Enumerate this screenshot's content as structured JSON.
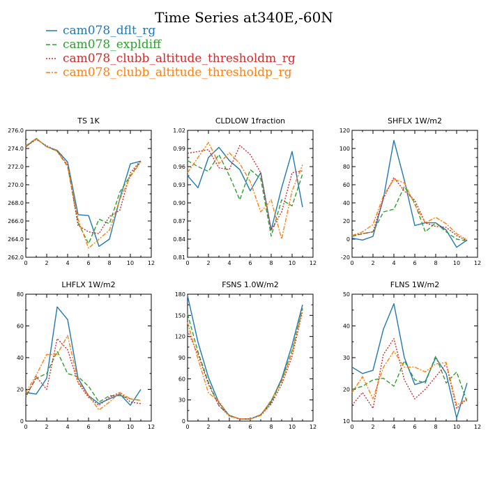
{
  "figure": {
    "title": "Time Series at340E,-60N",
    "legend": [
      {
        "name": "cam078_dflt_rg",
        "color": "#1f77b4",
        "dash": "solid"
      },
      {
        "name": "cam078_expldiff",
        "color": "#2ca02c",
        "dash": "dashed"
      },
      {
        "name": "cam078_clubb_altitude_thresholdm_rg",
        "color": "#d62728",
        "dash": "dotted"
      },
      {
        "name": "cam078_clubb_altitude_thresholdp_rg",
        "color": "#ff7f0e",
        "dash": "dashdot"
      }
    ]
  },
  "chart_data": [
    {
      "type": "line",
      "title": "TS   1K",
      "x": [
        0,
        1,
        2,
        3,
        4,
        5,
        6,
        7,
        8,
        9,
        10,
        11
      ],
      "xlim": [
        0,
        12
      ],
      "xticks": [
        0,
        2,
        4,
        6,
        8,
        10,
        12
      ],
      "ylim": [
        262.0,
        276.0
      ],
      "yticks": [
        262.0,
        264.0,
        266.0,
        268.0,
        270.0,
        272.0,
        274.0,
        276.0
      ],
      "ytick_labels": [
        "262.0",
        "264.0",
        "266.0",
        "268.0",
        "270.0",
        "272.0",
        "274.0",
        "276.0"
      ],
      "series": [
        {
          "name": "cam078_dflt_rg",
          "values": [
            274.2,
            275.1,
            274.2,
            273.8,
            272.5,
            266.7,
            266.6,
            263.2,
            264.0,
            268.5,
            272.3,
            272.6
          ]
        },
        {
          "name": "cam078_expldiff",
          "values": [
            274.3,
            275.1,
            274.2,
            273.7,
            272.0,
            265.8,
            263.5,
            266.2,
            265.7,
            269.2,
            271.0,
            272.6
          ]
        },
        {
          "name": "cam078_clubb_altitude_thresholdm_rg",
          "values": [
            274.2,
            275.0,
            274.3,
            273.7,
            272.2,
            265.5,
            264.8,
            264.6,
            266.5,
            267.2,
            271.3,
            272.7
          ]
        },
        {
          "name": "cam078_clubb_altitude_thresholdp_rg",
          "values": [
            274.3,
            275.1,
            274.2,
            273.7,
            272.1,
            266.2,
            263.0,
            264.0,
            265.0,
            268.4,
            270.9,
            272.5
          ]
        }
      ]
    },
    {
      "type": "line",
      "title": "CLDLOW   1fraction",
      "x": [
        0,
        1,
        2,
        3,
        4,
        5,
        6,
        7,
        8,
        9,
        10,
        11
      ],
      "xlim": [
        0,
        12
      ],
      "xticks": [
        0,
        2,
        4,
        6,
        8,
        10,
        12
      ],
      "ylim": [
        0.81,
        1.02
      ],
      "yticks": [
        0.81,
        0.84,
        0.87,
        0.9,
        0.93,
        0.96,
        0.99,
        1.02
      ],
      "ytick_labels": [
        "0.81",
        "0.84",
        "0.87",
        "0.90",
        "0.93",
        "0.96",
        "0.99",
        "1.02"
      ],
      "series": [
        {
          "name": "cam078_dflt_rg",
          "values": [
            0.945,
            0.925,
            0.975,
            0.992,
            0.97,
            0.955,
            0.92,
            0.95,
            0.855,
            0.925,
            0.985,
            0.893
          ]
        },
        {
          "name": "cam078_expldiff",
          "values": [
            0.97,
            0.96,
            0.952,
            0.98,
            0.945,
            0.905,
            0.955,
            0.94,
            0.845,
            0.905,
            0.895,
            0.948
          ]
        },
        {
          "name": "cam078_clubb_altitude_thresholdm_rg",
          "values": [
            0.982,
            0.985,
            0.988,
            0.958,
            0.955,
            0.995,
            0.98,
            0.95,
            0.855,
            0.885,
            0.95,
            0.953
          ]
        },
        {
          "name": "cam078_clubb_altitude_thresholdp_rg",
          "values": [
            0.95,
            0.975,
            1.0,
            0.965,
            0.983,
            0.965,
            0.935,
            0.885,
            0.905,
            0.84,
            0.92,
            0.963
          ]
        }
      ]
    },
    {
      "type": "line",
      "title": "SHFLX   1W/m2",
      "x": [
        0,
        1,
        2,
        3,
        4,
        5,
        6,
        7,
        8,
        9,
        10,
        11
      ],
      "xlim": [
        0,
        12
      ],
      "xticks": [
        0,
        2,
        4,
        6,
        8,
        10,
        12
      ],
      "ylim": [
        -20,
        120
      ],
      "yticks": [
        -20,
        0,
        20,
        40,
        60,
        80,
        100,
        120
      ],
      "ytick_labels": [
        "-20",
        "0",
        "20",
        "40",
        "60",
        "80",
        "100",
        "120"
      ],
      "series": [
        {
          "name": "cam078_dflt_rg",
          "values": [
            1,
            -1,
            3,
            45,
            109,
            65,
            15,
            18,
            18,
            10,
            -9,
            -1
          ]
        },
        {
          "name": "cam078_expldiff",
          "values": [
            3,
            6,
            8,
            30,
            33,
            58,
            40,
            8,
            18,
            8,
            0,
            -2
          ]
        },
        {
          "name": "cam078_clubb_altitude_thresholdm_rg",
          "values": [
            4,
            6,
            8,
            45,
            68,
            53,
            43,
            18,
            14,
            13,
            4,
            -2
          ]
        },
        {
          "name": "cam078_clubb_altitude_thresholdp_rg",
          "values": [
            4,
            8,
            16,
            48,
            66,
            62,
            38,
            18,
            24,
            17,
            6,
            -1
          ]
        }
      ]
    },
    {
      "type": "line",
      "title": "LHFLX   1W/m2",
      "x": [
        0,
        1,
        2,
        3,
        4,
        5,
        6,
        7,
        8,
        9,
        10,
        11
      ],
      "xlim": [
        0,
        12
      ],
      "xticks": [
        0,
        2,
        4,
        6,
        8,
        10,
        12
      ],
      "ylim": [
        0,
        80
      ],
      "yticks": [
        0,
        20,
        40,
        60,
        80
      ],
      "ytick_labels": [
        "0",
        "20",
        "40",
        "60",
        "80"
      ],
      "series": [
        {
          "name": "cam078_dflt_rg",
          "values": [
            18,
            17,
            27,
            72,
            64,
            27,
            16,
            11,
            14,
            17,
            10,
            20
          ]
        },
        {
          "name": "cam078_expldiff",
          "values": [
            16,
            27,
            30,
            44,
            30,
            28,
            22,
            12,
            16,
            16,
            14,
            13
          ]
        },
        {
          "name": "cam078_clubb_altitude_thresholdm_rg",
          "values": [
            15,
            28,
            20,
            52,
            45,
            24,
            15,
            10,
            15,
            18,
            12,
            11
          ]
        },
        {
          "name": "cam078_clubb_altitude_thresholdp_rg",
          "values": [
            18,
            29,
            42,
            42,
            54,
            25,
            16,
            7,
            12,
            18,
            14,
            13
          ]
        }
      ]
    },
    {
      "type": "line",
      "title": "FSNS   1.0W/m2",
      "x": [
        0,
        1,
        2,
        3,
        4,
        5,
        6,
        7,
        8,
        9,
        10,
        11
      ],
      "xlim": [
        0,
        12
      ],
      "xticks": [
        0,
        2,
        4,
        6,
        8,
        10,
        12
      ],
      "ylim": [
        0,
        180
      ],
      "yticks": [
        0,
        30,
        60,
        90,
        120,
        150,
        180
      ],
      "ytick_labels": [
        "0",
        "30",
        "60",
        "90",
        "120",
        "150",
        "180"
      ],
      "series": [
        {
          "name": "cam078_dflt_rg",
          "values": [
            178,
            112,
            62,
            26,
            8,
            3,
            3,
            9,
            28,
            60,
            108,
            165
          ]
        },
        {
          "name": "cam078_expldiff",
          "values": [
            152,
            98,
            55,
            22,
            8,
            3,
            3,
            9,
            26,
            58,
            100,
            160
          ]
        },
        {
          "name": "cam078_clubb_altitude_thresholdm_rg",
          "values": [
            128,
            95,
            52,
            22,
            7,
            3,
            3,
            8,
            24,
            52,
            92,
            156
          ]
        },
        {
          "name": "cam078_clubb_altitude_thresholdp_rg",
          "values": [
            140,
            88,
            40,
            28,
            7,
            3,
            3,
            8,
            30,
            56,
            98,
            158
          ]
        }
      ]
    },
    {
      "type": "line",
      "title": "FLNS   1W/m2",
      "x": [
        0,
        1,
        2,
        3,
        4,
        5,
        6,
        7,
        8,
        9,
        10,
        11
      ],
      "xlim": [
        0,
        12
      ],
      "xticks": [
        0,
        2,
        4,
        6,
        8,
        10,
        12
      ],
      "ylim": [
        10,
        50
      ],
      "yticks": [
        10,
        20,
        30,
        40,
        50
      ],
      "ytick_labels": [
        "10",
        "20",
        "30",
        "40",
        "50"
      ],
      "series": [
        {
          "name": "cam078_dflt_rg",
          "values": [
            27,
            25,
            26,
            39,
            47,
            30,
            21.5,
            22.5,
            30,
            25,
            11,
            22
          ]
        },
        {
          "name": "cam078_expldiff",
          "values": [
            20,
            21,
            23,
            23.5,
            21,
            29,
            23,
            22,
            30.5,
            22,
            25.5,
            16
          ]
        },
        {
          "name": "cam078_clubb_altitude_thresholdm_rg",
          "values": [
            15,
            19,
            14,
            31,
            36,
            23,
            17,
            20,
            24,
            28,
            14,
            17
          ]
        },
        {
          "name": "cam078_clubb_altitude_thresholdp_rg",
          "values": [
            19,
            24,
            17,
            27,
            32,
            27,
            27,
            25.5,
            28,
            28.5,
            15,
            17
          ]
        }
      ]
    }
  ]
}
